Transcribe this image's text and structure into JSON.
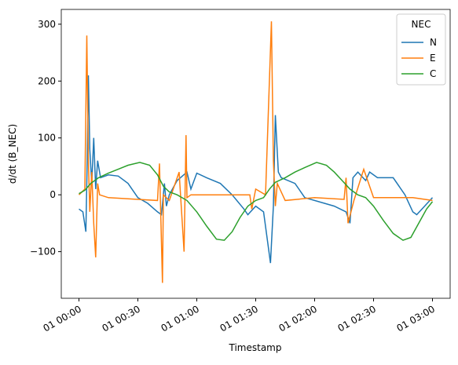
{
  "chart_data": {
    "type": "line",
    "xlabel": "Timestamp",
    "ylabel": "d/dt (B_NEC)",
    "legend_title": "NEC",
    "legend": "upper right",
    "xlim": [
      -9,
      189
    ],
    "ylim": [
      -182,
      326
    ],
    "xticks": [
      {
        "value": 0,
        "label": "01 00:00"
      },
      {
        "value": 30,
        "label": "01 00:30"
      },
      {
        "value": 60,
        "label": "01 01:00"
      },
      {
        "value": 90,
        "label": "01 01:30"
      },
      {
        "value": 120,
        "label": "01 02:00"
      },
      {
        "value": 150,
        "label": "01 02:30"
      },
      {
        "value": 180,
        "label": "01 03:00"
      }
    ],
    "yticks": [
      {
        "value": -100,
        "label": "−100"
      },
      0,
      100,
      200,
      300
    ],
    "series": [
      {
        "name": "N",
        "color": "#1f77b4",
        "x": [
          0,
          2,
          3.5,
          4.2,
          4.8,
          5.5,
          6.5,
          7.5,
          8.5,
          9.5,
          11,
          15,
          20,
          25,
          30,
          35,
          40,
          42,
          43.5,
          44.5,
          46,
          50,
          55,
          57,
          60,
          65,
          72,
          78,
          84,
          86,
          90,
          94,
          97.5,
          99,
          100,
          101.5,
          103,
          110,
          115,
          125,
          130,
          136,
          138,
          139.5,
          142,
          146,
          148,
          152,
          160,
          166,
          170,
          172,
          176,
          180
        ],
        "values": [
          -25,
          -30,
          -65,
          60,
          210,
          80,
          20,
          100,
          10,
          60,
          30,
          35,
          33,
          20,
          -5,
          -15,
          -30,
          -35,
          20,
          -20,
          0,
          25,
          40,
          10,
          38,
          30,
          20,
          0,
          -25,
          -35,
          -20,
          -30,
          -120,
          -20,
          140,
          40,
          30,
          20,
          -5,
          -15,
          -20,
          -30,
          -50,
          30,
          40,
          25,
          40,
          30,
          30,
          0,
          -30,
          -35,
          -20,
          -5
        ]
      },
      {
        "name": "E",
        "color": "#ff7f0e",
        "x": [
          0,
          3,
          4,
          4.8,
          5.5,
          6.5,
          7.5,
          8.5,
          9.5,
          10.5,
          15,
          30,
          40,
          41,
          42.5,
          43,
          46,
          51,
          53.5,
          54.5,
          55,
          57,
          70,
          87,
          88,
          90,
          95,
          98,
          99,
          100,
          101,
          105,
          120,
          135,
          136,
          137,
          140,
          145,
          150,
          170,
          180
        ],
        "values": [
          0,
          10,
          280,
          60,
          -30,
          40,
          -50,
          -110,
          20,
          0,
          -5,
          -8,
          -10,
          55,
          -155,
          0,
          -10,
          40,
          -100,
          105,
          -5,
          0,
          0,
          0,
          -25,
          10,
          0,
          305,
          60,
          -20,
          20,
          -10,
          -5,
          -8,
          30,
          -50,
          -10,
          45,
          -5,
          -5,
          -10
        ]
      },
      {
        "name": "C",
        "color": "#2ca02c",
        "x": [
          0,
          3,
          6,
          10,
          15,
          20,
          25,
          31,
          36,
          40,
          43,
          46,
          50,
          55,
          60,
          65,
          70,
          74,
          78,
          82,
          86,
          90,
          94,
          97,
          100,
          105,
          110,
          115,
          121,
          126,
          130,
          134,
          138,
          142,
          146,
          150,
          155,
          160,
          165,
          169,
          173,
          177,
          180
        ],
        "values": [
          2,
          8,
          20,
          30,
          38,
          45,
          52,
          57,
          52,
          35,
          15,
          5,
          0,
          -10,
          -30,
          -55,
          -78,
          -80,
          -65,
          -40,
          -20,
          -10,
          -5,
          10,
          22,
          30,
          40,
          48,
          57,
          52,
          40,
          25,
          10,
          0,
          -5,
          -20,
          -45,
          -68,
          -80,
          -75,
          -50,
          -25,
          -12
        ]
      }
    ]
  }
}
